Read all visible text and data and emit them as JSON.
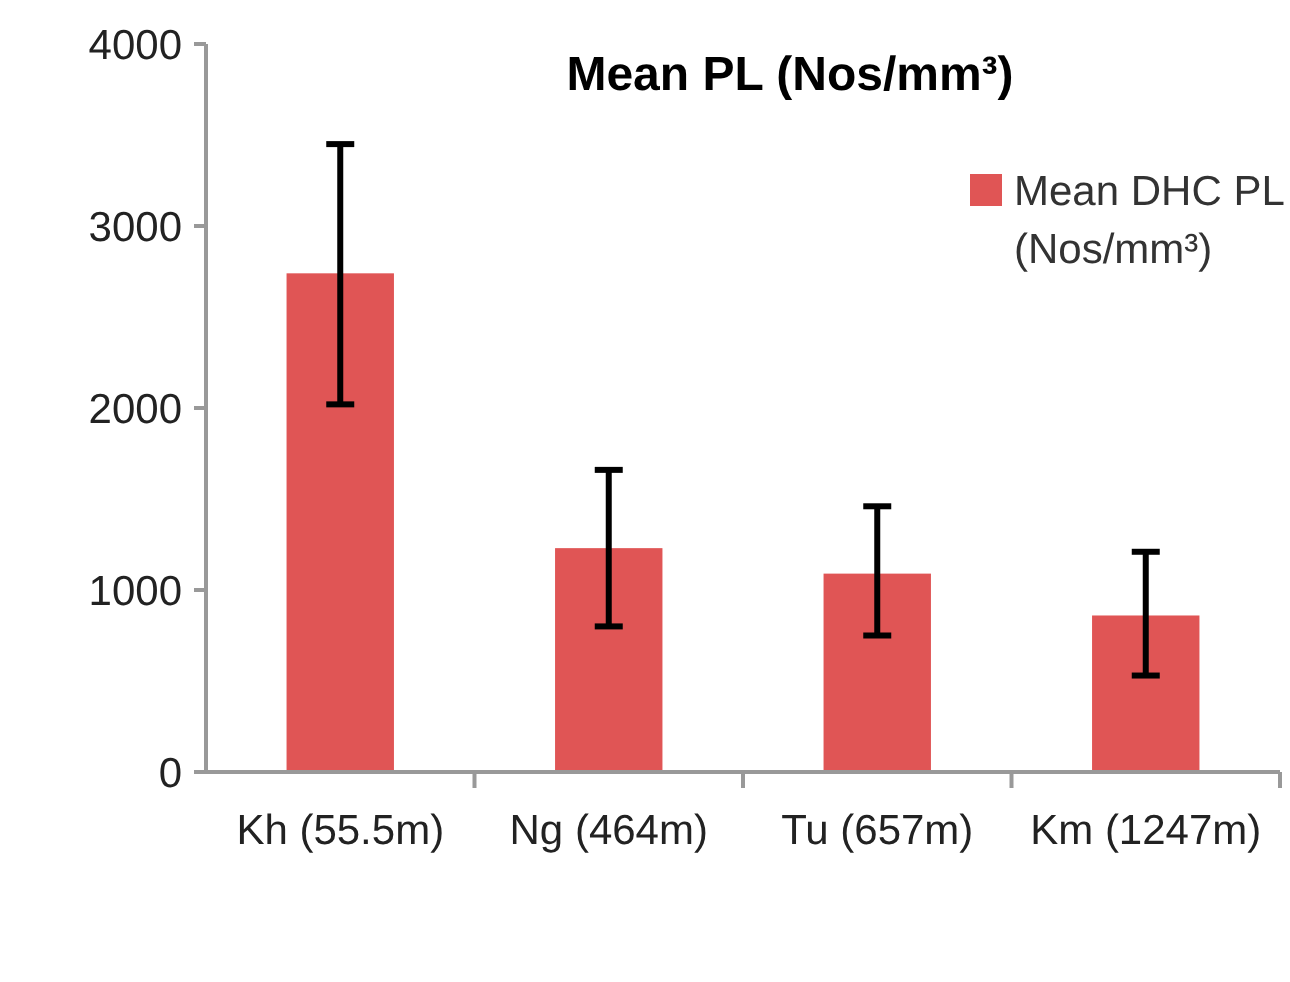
{
  "chart_data": {
    "type": "bar",
    "title": "Mean PL (Nos/mm³)",
    "categories": [
      "Kh (55.5m)",
      "Ng (464m)",
      "Tu (657m)",
      "Km (1247m)"
    ],
    "series": [
      {
        "name": "Mean DHC PL (Nos/mm³)",
        "color": "#e05555",
        "values": [
          2740,
          1230,
          1090,
          860
        ],
        "errors": [
          [
            2020,
            3450
          ],
          [
            800,
            1660
          ],
          [
            750,
            1460
          ],
          [
            530,
            1210
          ]
        ]
      }
    ],
    "ylim": [
      0,
      4000
    ],
    "yticks": [
      0,
      1000,
      2000,
      3000,
      4000
    ],
    "grid": false,
    "legend": "top right"
  }
}
